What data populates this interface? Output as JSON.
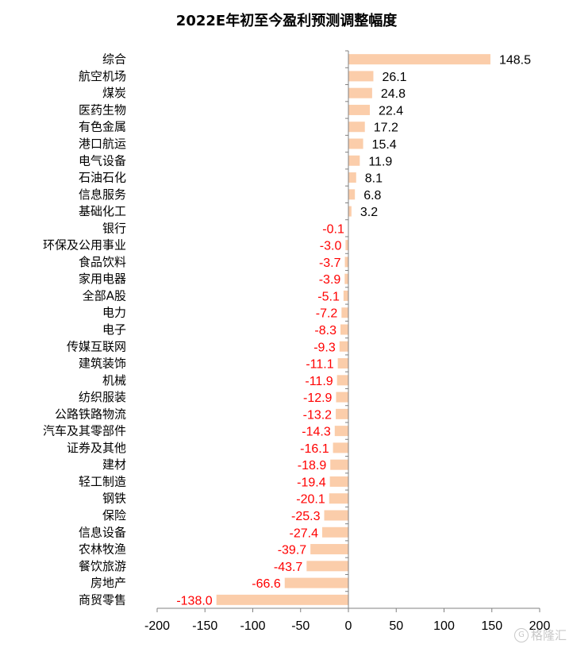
{
  "chart_data": {
    "type": "bar",
    "orientation": "horizontal",
    "title": "2022E年初至今盈利预测调整幅度",
    "categories": [
      "综合",
      "航空机场",
      "煤炭",
      "医药生物",
      "有色金属",
      "港口航运",
      "电气设备",
      "石油石化",
      "信息服务",
      "基础化工",
      "银行",
      "环保及公用事业",
      "食品饮料",
      "家用电器",
      "全部A股",
      "电力",
      "电子",
      "传媒互联网",
      "建筑装饰",
      "机械",
      "纺织服装",
      "公路铁路物流",
      "汽车及其零部件",
      "证券及其他",
      "建材",
      "轻工制造",
      "钢铁",
      "保险",
      "信息设备",
      "农林牧渔",
      "餐饮旅游",
      "房地产",
      "商贸零售"
    ],
    "values": [
      148.5,
      26.1,
      24.8,
      22.4,
      17.2,
      15.4,
      11.9,
      8.1,
      6.8,
      3.2,
      -0.1,
      -3.0,
      -3.7,
      -3.9,
      -5.1,
      -7.2,
      -8.3,
      -9.3,
      -11.1,
      -11.9,
      -12.9,
      -13.2,
      -14.3,
      -16.1,
      -18.9,
      -19.4,
      -20.1,
      -25.3,
      -27.4,
      -39.7,
      -43.7,
      -66.6,
      -138.0
    ],
    "value_labels": [
      "148.5",
      "26.1",
      "24.8",
      "22.4",
      "17.2",
      "15.4",
      "11.9",
      "8.1",
      "6.8",
      "3.2",
      "-0.1",
      "-3.0",
      "-3.7",
      "-3.9",
      "-5.1",
      "-7.2",
      "-8.3",
      "-9.3",
      "-11.1",
      "-11.9",
      "-12.9",
      "-13.2",
      "-14.3",
      "-16.1",
      "-18.9",
      "-19.4",
      "-20.1",
      "-25.3",
      "-27.4",
      "-39.7",
      "-43.7",
      "-66.6",
      "-138.0"
    ],
    "xlim": [
      -200,
      200
    ],
    "xticks": [
      "-200",
      "-150",
      "-100",
      "-50",
      "0",
      "50",
      "100",
      "150",
      "200"
    ],
    "xlabel": "",
    "ylabel": "",
    "grid": false,
    "legend": "none",
    "colors": {
      "bar": "#FBCDAA",
      "positive_label": "#000000",
      "negative_label": "#FF0000",
      "axis": "#808080"
    }
  },
  "watermark": {
    "text": "格隆汇",
    "icon": "gelonghui-logo-icon"
  }
}
